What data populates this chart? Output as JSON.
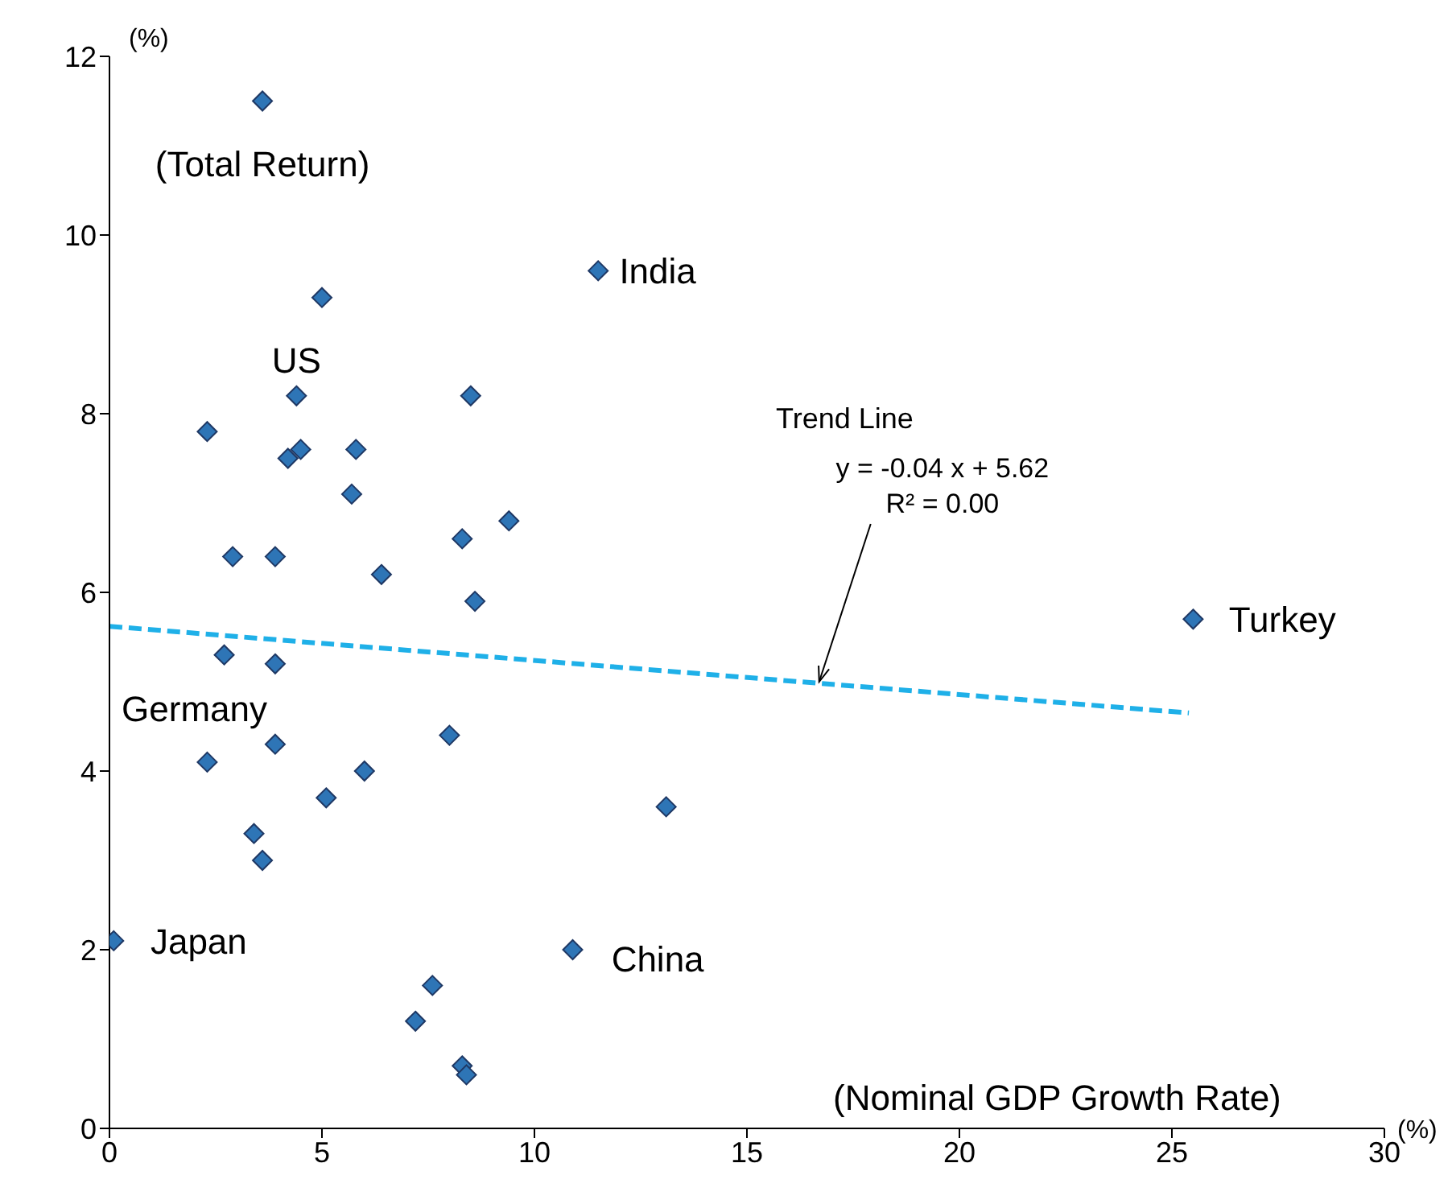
{
  "chart_data": {
    "type": "scatter",
    "xlabel": "(%)",
    "ylabel": "(%)",
    "xlim": [
      0,
      30
    ],
    "xticks": [
      0,
      5,
      10,
      15,
      20,
      25,
      30
    ],
    "ylim": [
      0,
      12
    ],
    "yticks": [
      0,
      2,
      4,
      6,
      8,
      10,
      12
    ],
    "grid": false,
    "legend": false,
    "marker": "diamond",
    "series": [
      {
        "color": "#2e75b6",
        "x": [
          3.6,
          11.5,
          5.0,
          4.4,
          8.5,
          2.3,
          4.5,
          4.2,
          5.8,
          5.7,
          9.4,
          8.3,
          2.9,
          3.9,
          6.4,
          8.6,
          25.5,
          2.7,
          3.9,
          3.9,
          8.0,
          2.3,
          6.0,
          5.1,
          13.1,
          3.4,
          3.6,
          0.1,
          10.9,
          7.6,
          7.2,
          8.3,
          8.4
        ],
        "values": [
          11.5,
          9.6,
          9.3,
          8.2,
          8.2,
          7.8,
          7.6,
          7.5,
          7.6,
          7.1,
          6.8,
          6.6,
          6.4,
          6.4,
          6.2,
          5.9,
          5.7,
          5.3,
          5.2,
          4.3,
          4.4,
          4.1,
          4.0,
          3.7,
          3.6,
          3.3,
          3.0,
          2.1,
          2.0,
          1.6,
          1.2,
          0.7,
          0.6
        ]
      },
      {
        "type": "line",
        "color": "#1fb0e8",
        "line_style": "dashed",
        "marker": "none",
        "x": [
          0,
          25.4
        ],
        "values": [
          5.62,
          4.65
        ]
      }
    ],
    "annotations": [
      "(Total Return)",
      "India",
      "US",
      "Turkey",
      "Germany",
      "Japan",
      "China",
      "Trend Line",
      "y = -0.04 x + 5.62",
      {
        "text": "R² = 0.00",
        "x": 16.7,
        "y": 5.0
      },
      "(Nominal GDP Growth Rate)"
    ]
  }
}
